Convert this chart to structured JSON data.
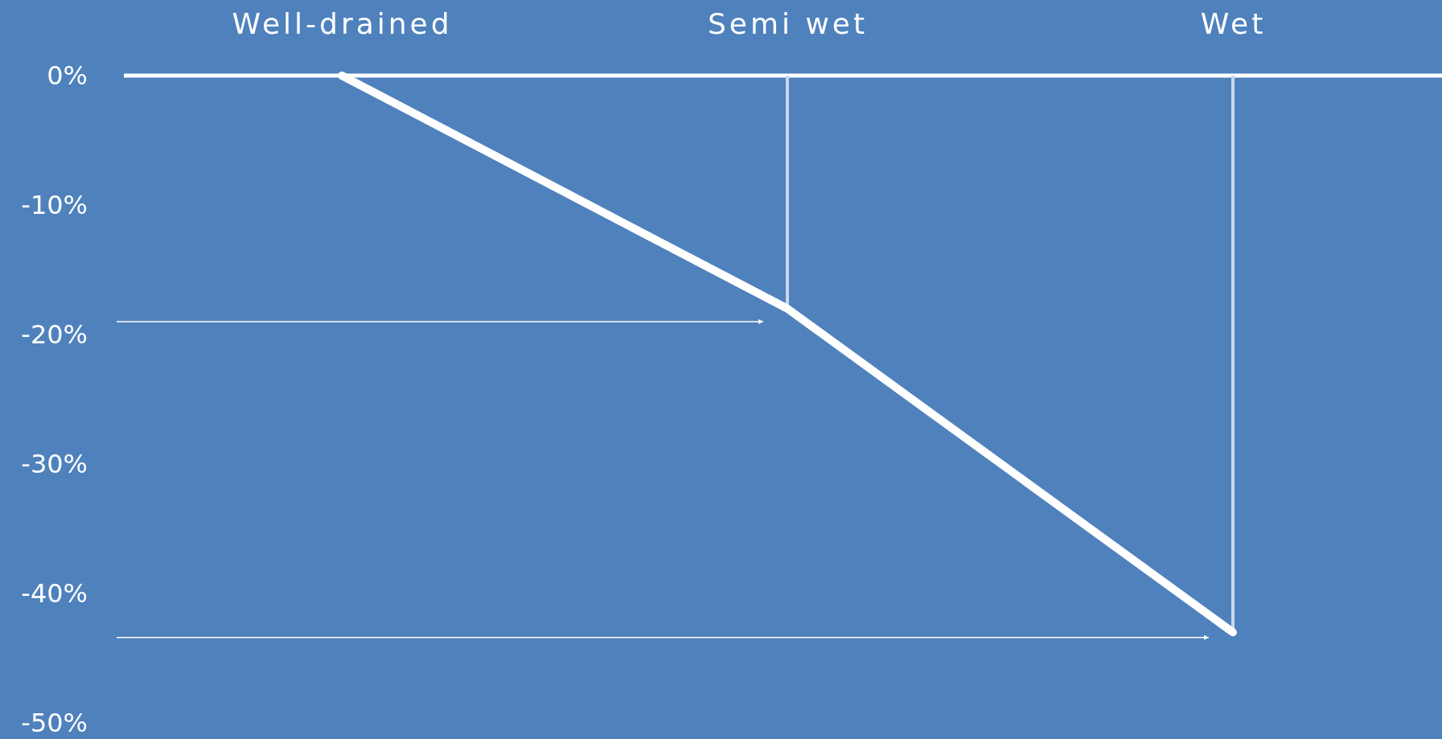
{
  "chart_data": {
    "type": "line",
    "categories": [
      "Well-drained",
      "Semi wet",
      "Wet"
    ],
    "series": [
      {
        "type": "bar",
        "color": "#c9d8eb",
        "values": [
          null,
          -18,
          -43
        ]
      },
      {
        "color": "#ffffff",
        "values": [
          0,
          -18,
          -43
        ]
      }
    ],
    "ref_lines": [
      {
        "axis": "y",
        "value": -19,
        "color": "#ffffff"
      },
      {
        "axis": "y",
        "value": -43.4,
        "color": "#ffffff"
      }
    ],
    "ylim": [
      -50,
      0
    ],
    "yticks": [
      {
        "value": 0,
        "label": "0%"
      },
      {
        "value": -10,
        "label": "-10%"
      },
      {
        "value": -20,
        "label": "-20%"
      },
      {
        "value": -30,
        "label": "-30%"
      },
      {
        "value": -40,
        "label": "-40%"
      },
      {
        "value": -50,
        "label": "-50%"
      }
    ],
    "grid": false,
    "marker": "none",
    "line_style": "solid"
  }
}
